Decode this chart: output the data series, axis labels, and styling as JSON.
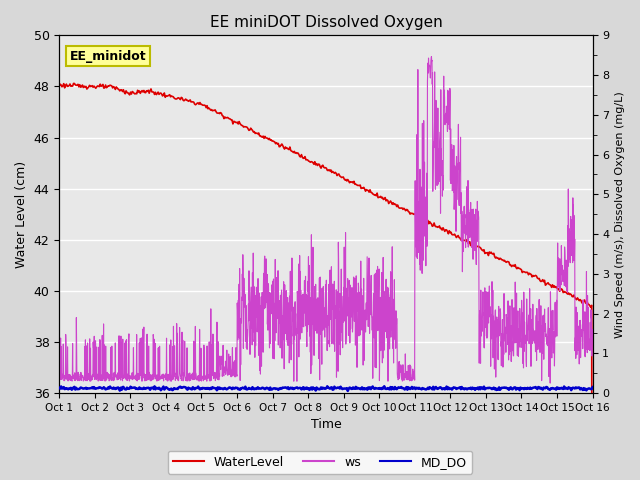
{
  "title": "EE miniDOT Dissolved Oxygen",
  "xlabel": "Time",
  "ylabel_left": "Water Level (cm)",
  "ylabel_right": "Wind Speed (m/s), Dissolved Oxygen (mg/L)",
  "legend_label": "EE_minidot",
  "x_tick_labels": [
    "Oct 1",
    "Oct 2",
    "Oct 3",
    "Oct 4",
    "Oct 5",
    "Oct 6",
    "Oct 7",
    "Oct 8",
    "Oct 9",
    "Oct 10",
    "Oct 11",
    "Oct 12",
    "Oct 13",
    "Oct 14",
    "Oct 15",
    "Oct 16"
  ],
  "ylim_left": [
    36,
    50
  ],
  "ylim_right": [
    0.0,
    9.0
  ],
  "yticks_left": [
    36,
    38,
    40,
    42,
    44,
    46,
    48,
    50
  ],
  "yticks_right": [
    0.0,
    1.0,
    2.0,
    3.0,
    4.0,
    5.0,
    6.0,
    7.0,
    8.0,
    9.0
  ],
  "line_wl_color": "#dd0000",
  "line_ws_color": "#cc44cc",
  "line_do_color": "#0000cc",
  "fig_facecolor": "#d8d8d8",
  "plot_facecolor": "#e8e8e8",
  "grid_color": "#ffffff",
  "legend_box_facecolor": "#ffff99",
  "legend_box_edgecolor": "#bbbb00",
  "figsize": [
    6.4,
    4.8
  ],
  "dpi": 100
}
